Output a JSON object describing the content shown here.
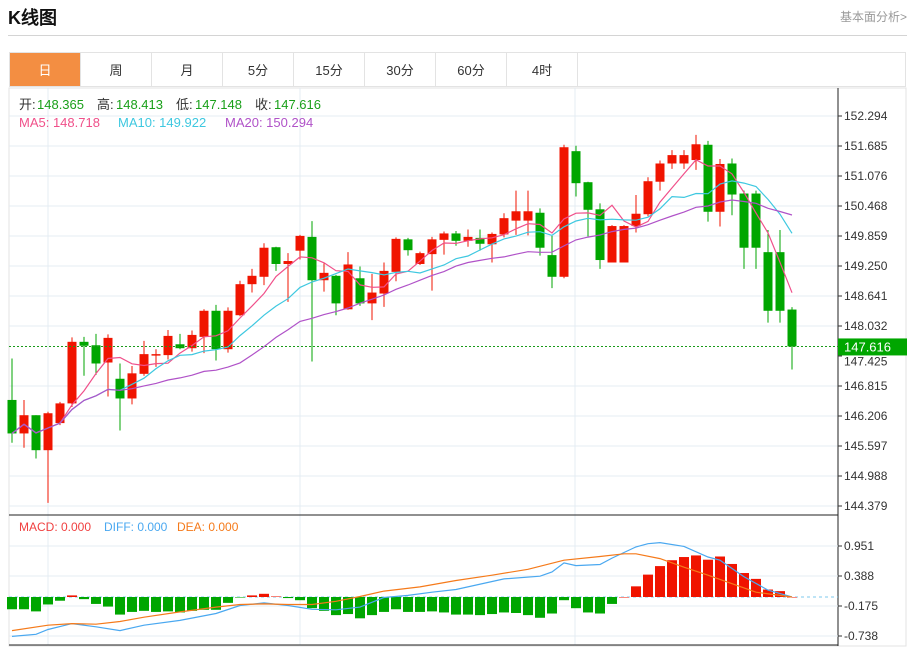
{
  "header": {
    "title": "K线图",
    "link": "基本面分析>"
  },
  "tabs": [
    {
      "label": "日",
      "active": true
    },
    {
      "label": "周"
    },
    {
      "label": "月"
    },
    {
      "label": "5分"
    },
    {
      "label": "15分"
    },
    {
      "label": "30分"
    },
    {
      "label": "60分"
    },
    {
      "label": "4时"
    }
  ],
  "ohlc_legend": {
    "open_label": "开:",
    "open": "148.365",
    "high_label": "高:",
    "high": "148.413",
    "low_label": "低:",
    "low": "147.148",
    "close_label": "收:",
    "close": "147.616"
  },
  "ma_legend": {
    "ma5": "MA5: 148.718",
    "ma10": "MA10: 149.922",
    "ma20": "MA20: 150.294"
  },
  "macd_legend": {
    "macd": "MACD: 0.000",
    "diff": "DIFF: 0.000",
    "dea": "DEA: 0.000"
  },
  "colors": {
    "up": "#f01400",
    "down": "#00a600",
    "ma5": "#f0508a",
    "ma10": "#3ec8e0",
    "ma20": "#b052c8",
    "diff": "#4aa8f0",
    "dea": "#f57a1a",
    "accent": "#f38e42"
  },
  "chart_data": [
    {
      "type": "candlestick",
      "title": "K线图",
      "price_axis_ticks": [
        "152.294",
        "151.685",
        "151.076",
        "150.468",
        "149.859",
        "149.250",
        "148.641",
        "148.032",
        "147.425",
        "146.815",
        "146.206",
        "145.597",
        "144.988",
        "144.379"
      ],
      "ylim": [
        144.379,
        152.294
      ],
      "last_price": "147.616",
      "ohlc": [
        [
          146.53,
          147.37,
          145.66,
          145.85
        ],
        [
          145.85,
          146.53,
          145.56,
          146.22
        ],
        [
          146.22,
          146.22,
          145.34,
          145.51
        ],
        [
          145.51,
          146.29,
          144.44,
          146.26
        ],
        [
          146.06,
          146.49,
          146.02,
          146.46
        ],
        [
          146.46,
          147.8,
          146.39,
          147.71
        ],
        [
          147.71,
          147.81,
          147.02,
          147.63
        ],
        [
          147.64,
          147.87,
          147.04,
          147.27
        ],
        [
          147.29,
          147.86,
          146.6,
          147.79
        ],
        [
          146.96,
          147.27,
          145.91,
          146.56
        ],
        [
          146.56,
          147.22,
          146.44,
          147.07
        ],
        [
          147.06,
          147.73,
          147.02,
          147.46
        ],
        [
          147.43,
          147.56,
          147.2,
          147.46
        ],
        [
          147.44,
          147.95,
          147.35,
          147.83
        ],
        [
          147.66,
          147.87,
          147.56,
          147.58
        ],
        [
          147.58,
          147.94,
          147.51,
          147.85
        ],
        [
          147.81,
          148.37,
          147.48,
          148.34
        ],
        [
          148.34,
          148.46,
          147.33,
          147.56
        ],
        [
          147.56,
          148.41,
          147.49,
          148.34
        ],
        [
          148.25,
          148.95,
          148.23,
          148.88
        ],
        [
          148.88,
          149.19,
          148.71,
          149.05
        ],
        [
          149.03,
          149.71,
          148.86,
          149.62
        ],
        [
          149.63,
          149.64,
          149.15,
          149.29
        ],
        [
          149.29,
          149.51,
          148.52,
          149.35
        ],
        [
          149.56,
          149.88,
          149.38,
          149.86
        ],
        [
          149.84,
          150.16,
          147.31,
          148.96
        ],
        [
          148.96,
          149.3,
          148.73,
          149.11
        ],
        [
          149.05,
          149.07,
          148.25,
          148.49
        ],
        [
          148.37,
          149.53,
          148.36,
          149.28
        ],
        [
          149.0,
          149.24,
          148.44,
          148.49
        ],
        [
          148.49,
          149.09,
          148.15,
          148.71
        ],
        [
          148.69,
          149.32,
          148.42,
          149.15
        ],
        [
          149.13,
          149.83,
          148.94,
          149.8
        ],
        [
          149.79,
          149.82,
          149.46,
          149.57
        ],
        [
          149.29,
          149.54,
          149.27,
          149.51
        ],
        [
          149.49,
          149.84,
          148.75,
          149.79
        ],
        [
          149.78,
          149.95,
          149.48,
          149.91
        ],
        [
          149.91,
          149.96,
          149.66,
          149.76
        ],
        [
          149.76,
          149.99,
          149.64,
          149.84
        ],
        [
          149.82,
          149.99,
          149.56,
          149.7
        ],
        [
          149.69,
          149.93,
          149.32,
          149.9
        ],
        [
          149.89,
          150.32,
          149.83,
          150.22
        ],
        [
          150.17,
          150.78,
          149.88,
          150.36
        ],
        [
          150.17,
          150.78,
          149.87,
          150.36
        ],
        [
          150.33,
          150.42,
          149.46,
          149.62
        ],
        [
          149.47,
          149.86,
          148.8,
          149.03
        ],
        [
          149.03,
          151.71,
          149.0,
          151.66
        ],
        [
          151.58,
          151.69,
          150.66,
          150.93
        ],
        [
          150.95,
          150.96,
          149.85,
          150.39
        ],
        [
          150.4,
          150.52,
          149.19,
          149.37
        ],
        [
          149.32,
          150.08,
          149.32,
          150.06
        ],
        [
          149.32,
          150.08,
          149.32,
          150.06
        ],
        [
          150.06,
          150.69,
          149.93,
          150.31
        ],
        [
          150.3,
          151.05,
          150.26,
          150.97
        ],
        [
          150.96,
          151.39,
          150.78,
          151.33
        ],
        [
          151.33,
          151.6,
          151.22,
          151.5
        ],
        [
          151.33,
          151.6,
          151.22,
          151.5
        ],
        [
          151.4,
          151.91,
          151.2,
          151.72
        ],
        [
          151.71,
          151.79,
          150.15,
          150.35
        ],
        [
          150.35,
          151.42,
          150.05,
          151.32
        ],
        [
          151.33,
          151.43,
          150.28,
          150.7
        ],
        [
          150.72,
          150.78,
          149.19,
          149.62
        ],
        [
          150.72,
          150.78,
          149.19,
          149.62
        ],
        [
          149.53,
          149.98,
          148.1,
          148.34
        ],
        [
          149.53,
          149.98,
          148.1,
          148.34
        ],
        [
          148.365,
          148.413,
          147.148,
          147.616
        ]
      ],
      "ma_periods": [
        5,
        10,
        20
      ]
    },
    {
      "type": "macd",
      "axis_ticks": [
        "0.951",
        "0.388",
        "-0.175",
        "-0.738"
      ],
      "ylim": [
        -0.738,
        0.951
      ],
      "histogram": [
        -0.23,
        -0.23,
        -0.27,
        -0.14,
        -0.07,
        0.03,
        -0.04,
        -0.13,
        -0.18,
        -0.33,
        -0.28,
        -0.26,
        -0.28,
        -0.27,
        -0.29,
        -0.26,
        -0.24,
        -0.24,
        -0.11,
        -0.01,
        0.03,
        0.06,
        0.01,
        -0.02,
        -0.06,
        -0.21,
        -0.26,
        -0.34,
        -0.32,
        -0.4,
        -0.34,
        -0.28,
        -0.23,
        -0.28,
        -0.28,
        -0.27,
        -0.29,
        -0.33,
        -0.33,
        -0.34,
        -0.32,
        -0.29,
        -0.3,
        -0.34,
        -0.39,
        -0.31,
        -0.06,
        -0.21,
        -0.29,
        -0.31,
        -0.13,
        0.0,
        0.2,
        0.42,
        0.58,
        0.69,
        0.75,
        0.78,
        0.7,
        0.76,
        0.62,
        0.45,
        0.34,
        0.14,
        0.11,
        0.0
      ],
      "diff": [
        [
          0,
          -0.74
        ],
        [
          2,
          -0.7
        ],
        [
          3,
          -0.61
        ],
        [
          5,
          -0.5
        ],
        [
          7,
          -0.56
        ],
        [
          9,
          -0.63
        ],
        [
          11,
          -0.53
        ],
        [
          14,
          -0.44
        ],
        [
          17,
          -0.31
        ],
        [
          19,
          -0.16
        ],
        [
          21,
          -0.11
        ],
        [
          23,
          -0.16
        ],
        [
          25,
          -0.23
        ],
        [
          27,
          -0.24
        ],
        [
          29,
          -0.19
        ],
        [
          31,
          -0.01
        ],
        [
          33,
          0.03
        ],
        [
          35,
          0.09
        ],
        [
          37,
          0.14
        ],
        [
          41,
          0.34
        ],
        [
          44,
          0.39
        ],
        [
          45,
          0.47
        ],
        [
          46,
          0.64
        ],
        [
          47,
          0.59
        ],
        [
          49,
          0.61
        ],
        [
          50,
          0.73
        ],
        [
          52,
          0.94
        ],
        [
          53,
          1.0
        ],
        [
          54,
          1.02
        ],
        [
          56,
          0.95
        ],
        [
          58,
          0.75
        ],
        [
          59,
          0.69
        ],
        [
          61,
          0.38
        ],
        [
          63,
          0.13
        ],
        [
          65,
          0.0
        ]
      ],
      "dea": [
        [
          0,
          -0.63
        ],
        [
          3,
          -0.53
        ],
        [
          5,
          -0.5
        ],
        [
          7,
          -0.51
        ],
        [
          9,
          -0.46
        ],
        [
          11,
          -0.38
        ],
        [
          14,
          -0.28
        ],
        [
          17,
          -0.19
        ],
        [
          19,
          -0.14
        ],
        [
          21,
          -0.13
        ],
        [
          23,
          -0.14
        ],
        [
          25,
          -0.14
        ],
        [
          27,
          -0.08
        ],
        [
          29,
          0.01
        ],
        [
          31,
          0.11
        ],
        [
          34,
          0.19
        ],
        [
          37,
          0.31
        ],
        [
          40,
          0.41
        ],
        [
          43,
          0.52
        ],
        [
          46,
          0.69
        ],
        [
          49,
          0.76
        ],
        [
          51,
          0.81
        ],
        [
          52,
          0.81
        ],
        [
          54,
          0.72
        ],
        [
          56,
          0.56
        ],
        [
          58,
          0.41
        ],
        [
          60,
          0.25
        ],
        [
          62,
          0.09
        ],
        [
          64,
          0.03
        ],
        [
          65,
          0.0
        ]
      ]
    }
  ]
}
